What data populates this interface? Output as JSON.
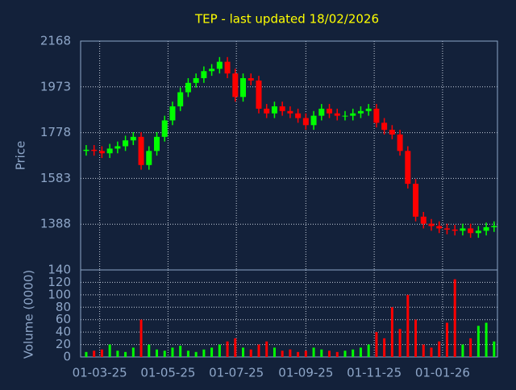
{
  "chart_data": {
    "type": "candlestick",
    "title": "TEP - last updated 18/02/2026",
    "ylabel": "Price",
    "y2label": "Volume (0000)",
    "up_color": "#00ff00",
    "down_color": "#ff0000",
    "grid": true,
    "xlim": [
      "12-02-25",
      "19-02-26"
    ],
    "xticks": [
      "01-03-25",
      "01-05-25",
      "01-07-25",
      "01-09-25",
      "01-11-25",
      "01-01-26"
    ],
    "ylim": [
      1193,
      2168
    ],
    "yticks": [
      1388,
      1583,
      1778,
      1973,
      2168
    ],
    "y2lim": [
      0,
      140
    ],
    "y2ticks": [
      0,
      20,
      40,
      60,
      80,
      100,
      120,
      140
    ],
    "x": [
      "17-02-25",
      "24-02-25",
      "03-03-25",
      "10-03-25",
      "17-03-25",
      "24-03-25",
      "31-03-25",
      "07-04-25",
      "14-04-25",
      "21-04-25",
      "28-04-25",
      "05-05-25",
      "12-05-25",
      "19-05-25",
      "26-05-25",
      "02-06-25",
      "09-06-25",
      "16-06-25",
      "23-06-25",
      "30-06-25",
      "07-07-25",
      "14-07-25",
      "21-07-25",
      "28-07-25",
      "04-08-25",
      "11-08-25",
      "18-08-25",
      "25-08-25",
      "01-09-25",
      "08-09-25",
      "15-09-25",
      "22-09-25",
      "29-09-25",
      "06-10-25",
      "13-10-25",
      "20-10-25",
      "27-10-25",
      "03-11-25",
      "10-11-25",
      "17-11-25",
      "24-11-25",
      "01-12-25",
      "08-12-25",
      "15-12-25",
      "22-12-25",
      "29-12-25",
      "05-01-26",
      "12-01-26",
      "19-01-26",
      "26-01-26",
      "02-02-26",
      "09-02-26",
      "16-02-26"
    ],
    "open": [
      1700,
      1705,
      1700,
      1690,
      1710,
      1720,
      1745,
      1760,
      1640,
      1700,
      1760,
      1830,
      1890,
      1950,
      1990,
      2010,
      2040,
      2050,
      2080,
      2030,
      1930,
      2010,
      2000,
      1880,
      1860,
      1890,
      1870,
      1860,
      1840,
      1810,
      1850,
      1880,
      1860,
      1850,
      1850,
      1860,
      1870,
      1880,
      1820,
      1790,
      1770,
      1700,
      1560,
      1420,
      1390,
      1380,
      1370,
      1365,
      1360,
      1370,
      1350,
      1360,
      1375
    ],
    "high": [
      1725,
      1725,
      1720,
      1730,
      1740,
      1765,
      1780,
      1780,
      1720,
      1780,
      1850,
      1910,
      1970,
      2010,
      2030,
      2060,
      2070,
      2100,
      2100,
      2050,
      2030,
      2030,
      2020,
      1900,
      1910,
      1910,
      1890,
      1880,
      1860,
      1870,
      1900,
      1900,
      1880,
      1870,
      1880,
      1890,
      1900,
      1900,
      1840,
      1810,
      1790,
      1720,
      1580,
      1440,
      1410,
      1400,
      1390,
      1385,
      1390,
      1390,
      1380,
      1395,
      1400
    ],
    "low": [
      1680,
      1680,
      1670,
      1670,
      1690,
      1700,
      1725,
      1620,
      1620,
      1680,
      1740,
      1810,
      1870,
      1930,
      1970,
      1990,
      2020,
      2030,
      2010,
      1910,
      1910,
      1980,
      1860,
      1840,
      1840,
      1850,
      1840,
      1820,
      1790,
      1790,
      1830,
      1840,
      1830,
      1830,
      1830,
      1840,
      1850,
      1800,
      1770,
      1750,
      1680,
      1540,
      1400,
      1370,
      1360,
      1350,
      1345,
      1340,
      1340,
      1330,
      1330,
      1340,
      1355
    ],
    "close": [
      1705,
      1700,
      1690,
      1710,
      1720,
      1745,
      1760,
      1640,
      1700,
      1760,
      1830,
      1890,
      1950,
      1990,
      2010,
      2040,
      2050,
      2080,
      2030,
      1930,
      2010,
      2000,
      1880,
      1860,
      1890,
      1870,
      1860,
      1840,
      1810,
      1850,
      1880,
      1860,
      1850,
      1850,
      1860,
      1870,
      1880,
      1820,
      1790,
      1770,
      1700,
      1560,
      1420,
      1390,
      1380,
      1370,
      1365,
      1360,
      1370,
      1350,
      1360,
      1375,
      1380
    ],
    "volume": [
      8,
      10,
      12,
      20,
      10,
      8,
      15,
      60,
      20,
      12,
      10,
      15,
      18,
      10,
      8,
      12,
      15,
      20,
      25,
      30,
      15,
      12,
      20,
      25,
      15,
      10,
      12,
      8,
      10,
      15,
      12,
      10,
      8,
      10,
      12,
      15,
      20,
      40,
      30,
      80,
      45,
      100,
      60,
      20,
      15,
      25,
      55,
      125,
      20,
      30,
      50,
      55,
      25
    ]
  }
}
